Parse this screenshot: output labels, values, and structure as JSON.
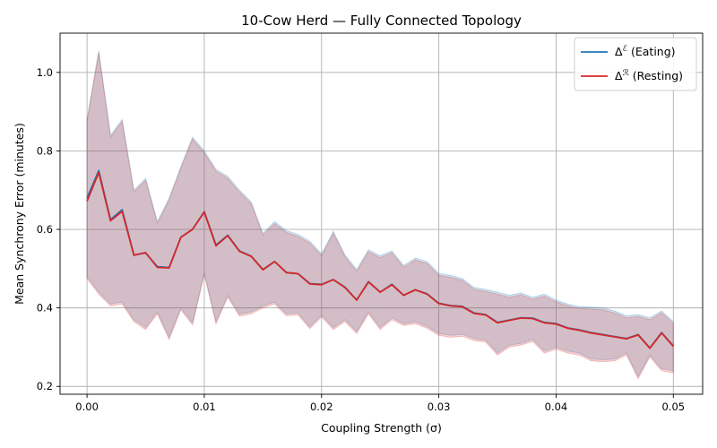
{
  "chart_data": {
    "type": "line",
    "title": "10-Cow Herd — Fully Connected Topology",
    "xlabel": "Coupling Strength (σ)",
    "ylabel": "Mean Synchrony Error (minutes)",
    "xlim": [
      -0.0023,
      0.0525
    ],
    "ylim": [
      0.18,
      1.1
    ],
    "x_ticks": [
      0.0,
      0.01,
      0.02,
      0.03,
      0.04,
      0.05
    ],
    "x_tick_labels": [
      "0.00",
      "0.01",
      "0.02",
      "0.03",
      "0.04",
      "0.05"
    ],
    "y_ticks": [
      0.2,
      0.4,
      0.6,
      0.8,
      1.0
    ],
    "y_tick_labels": [
      "0.2",
      "0.4",
      "0.6",
      "0.8",
      "1.0"
    ],
    "grid": true,
    "legend_position": "upper right",
    "x": [
      0.0,
      0.001,
      0.002,
      0.003,
      0.004,
      0.005,
      0.006,
      0.007,
      0.008,
      0.009,
      0.01,
      0.011,
      0.012,
      0.013,
      0.014,
      0.015,
      0.016,
      0.017,
      0.018,
      0.019,
      0.02,
      0.021,
      0.022,
      0.023,
      0.024,
      0.025,
      0.026,
      0.027,
      0.028,
      0.029,
      0.03,
      0.031,
      0.032,
      0.033,
      0.034,
      0.035,
      0.036,
      0.037,
      0.038,
      0.039,
      0.04,
      0.041,
      0.042,
      0.043,
      0.044,
      0.045,
      0.046,
      0.047,
      0.048,
      0.049,
      0.05
    ],
    "series": [
      {
        "name": "Δℰ (Eating)",
        "legend_main": "Δ",
        "legend_sup": "ℰ",
        "legend_rest": " (Eating)",
        "color": "#1f77b4",
        "values": [
          0.68,
          0.75,
          0.625,
          0.65,
          0.535,
          0.54,
          0.505,
          0.503,
          0.58,
          0.6,
          0.645,
          0.56,
          0.585,
          0.545,
          0.532,
          0.498,
          0.518,
          0.49,
          0.487,
          0.462,
          0.46,
          0.472,
          0.453,
          0.42,
          0.467,
          0.44,
          0.46,
          0.432,
          0.446,
          0.436,
          0.412,
          0.406,
          0.404,
          0.387,
          0.383,
          0.363,
          0.369,
          0.375,
          0.374,
          0.363,
          0.36,
          0.349,
          0.344,
          0.337,
          0.332,
          0.327,
          0.322,
          0.332,
          0.298,
          0.337,
          0.303
        ],
        "band_upper": [
          0.88,
          1.055,
          0.84,
          0.88,
          0.7,
          0.73,
          0.62,
          0.68,
          0.76,
          0.835,
          0.8,
          0.753,
          0.735,
          0.7,
          0.67,
          0.59,
          0.62,
          0.597,
          0.587,
          0.57,
          0.538,
          0.595,
          0.535,
          0.498,
          0.548,
          0.533,
          0.545,
          0.508,
          0.527,
          0.518,
          0.488,
          0.483,
          0.475,
          0.452,
          0.447,
          0.44,
          0.432,
          0.438,
          0.427,
          0.435,
          0.42,
          0.41,
          0.403,
          0.402,
          0.4,
          0.392,
          0.38,
          0.383,
          0.375,
          0.392,
          0.365
        ],
        "band_lower": [
          0.48,
          0.44,
          0.41,
          0.415,
          0.37,
          0.35,
          0.39,
          0.325,
          0.4,
          0.362,
          0.49,
          0.365,
          0.432,
          0.384,
          0.39,
          0.405,
          0.415,
          0.385,
          0.387,
          0.352,
          0.382,
          0.35,
          0.37,
          0.34,
          0.39,
          0.35,
          0.375,
          0.36,
          0.365,
          0.353,
          0.335,
          0.33,
          0.333,
          0.322,
          0.318,
          0.285,
          0.305,
          0.31,
          0.32,
          0.29,
          0.3,
          0.29,
          0.285,
          0.27,
          0.268,
          0.27,
          0.285,
          0.225,
          0.28,
          0.245,
          0.24
        ]
      },
      {
        "name": "Δℛ (Resting)",
        "legend_main": "Δ",
        "legend_sup": "ℛ",
        "legend_rest": " (Resting)",
        "color": "#d62728",
        "values": [
          0.672,
          0.745,
          0.622,
          0.646,
          0.534,
          0.541,
          0.503,
          0.502,
          0.58,
          0.6,
          0.644,
          0.558,
          0.584,
          0.544,
          0.531,
          0.497,
          0.518,
          0.49,
          0.487,
          0.461,
          0.459,
          0.472,
          0.452,
          0.42,
          0.466,
          0.44,
          0.459,
          0.432,
          0.446,
          0.435,
          0.411,
          0.405,
          0.403,
          0.386,
          0.382,
          0.362,
          0.368,
          0.374,
          0.373,
          0.362,
          0.359,
          0.348,
          0.343,
          0.336,
          0.331,
          0.326,
          0.321,
          0.331,
          0.297,
          0.336,
          0.302
        ],
        "band_upper": [
          0.875,
          1.05,
          0.835,
          0.875,
          0.695,
          0.725,
          0.615,
          0.675,
          0.755,
          0.83,
          0.795,
          0.748,
          0.73,
          0.695,
          0.665,
          0.585,
          0.615,
          0.592,
          0.582,
          0.565,
          0.533,
          0.59,
          0.53,
          0.493,
          0.543,
          0.528,
          0.54,
          0.503,
          0.522,
          0.513,
          0.483,
          0.478,
          0.47,
          0.447,
          0.442,
          0.435,
          0.427,
          0.433,
          0.422,
          0.43,
          0.415,
          0.405,
          0.398,
          0.397,
          0.395,
          0.387,
          0.375,
          0.378,
          0.37,
          0.387,
          0.36
        ],
        "band_lower": [
          0.475,
          0.435,
          0.405,
          0.41,
          0.365,
          0.345,
          0.385,
          0.32,
          0.395,
          0.357,
          0.485,
          0.36,
          0.427,
          0.379,
          0.385,
          0.4,
          0.41,
          0.38,
          0.382,
          0.347,
          0.377,
          0.345,
          0.365,
          0.335,
          0.385,
          0.345,
          0.37,
          0.355,
          0.36,
          0.348,
          0.33,
          0.325,
          0.328,
          0.317,
          0.313,
          0.28,
          0.3,
          0.305,
          0.315,
          0.285,
          0.295,
          0.285,
          0.28,
          0.265,
          0.263,
          0.265,
          0.28,
          0.22,
          0.275,
          0.24,
          0.235
        ]
      }
    ]
  }
}
